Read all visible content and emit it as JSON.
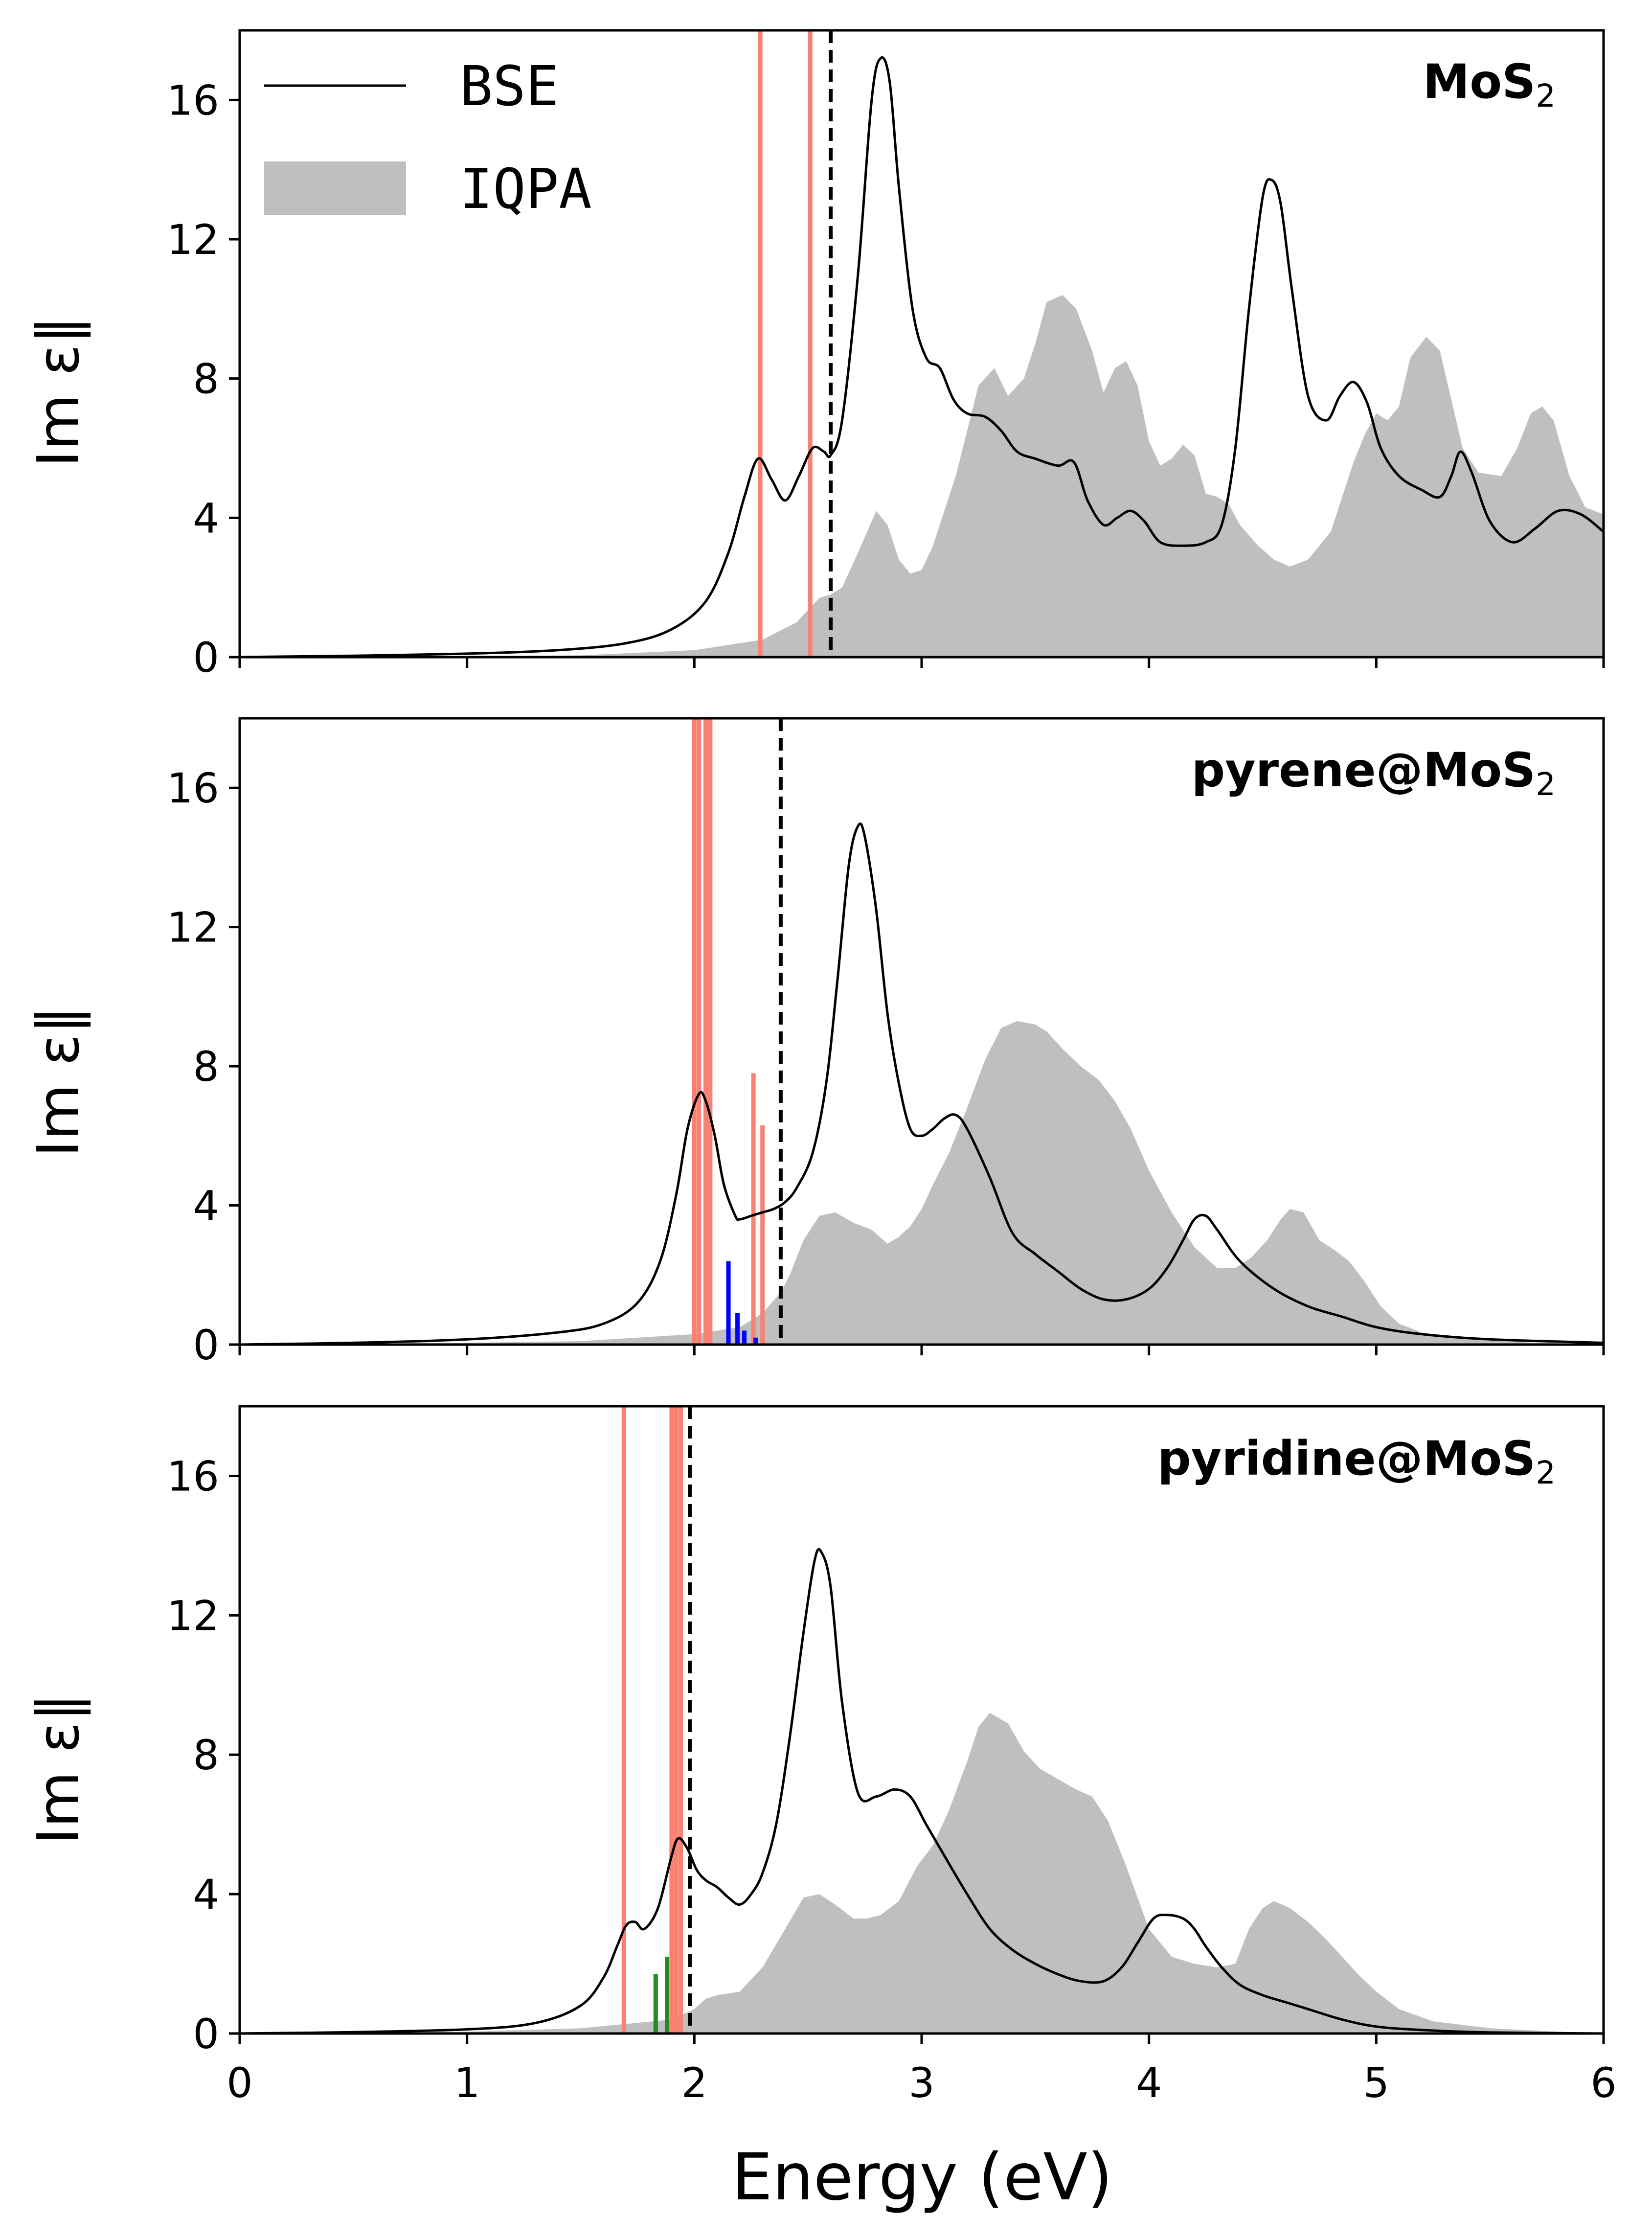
{
  "colors": {
    "bse": "#000000",
    "iqpa": "#bfbfbf",
    "salmon": "#fa8072",
    "blue": "#0000ff",
    "green": "#228b22",
    "dashed": "#000000"
  },
  "legend": {
    "bse_label": "BSE",
    "iqpa_label": "IQPA"
  },
  "chart_data": [
    {
      "type": "line",
      "panel_label": "MoS",
      "panel_label_sub": "2",
      "ylabel": "Im ε∥",
      "xlim": [
        0,
        6
      ],
      "ylim": [
        0,
        18
      ],
      "xticks": [
        0,
        1,
        2,
        3,
        4,
        5,
        6
      ],
      "yticks": [
        0,
        4,
        8,
        12,
        16
      ],
      "gap_line_x": 2.6,
      "bse": {
        "x": [
          0,
          0.5,
          1,
          1.4,
          1.7,
          1.9,
          2.05,
          2.15,
          2.22,
          2.28,
          2.34,
          2.4,
          2.46,
          2.52,
          2.57,
          2.6,
          2.65,
          2.72,
          2.78,
          2.82,
          2.86,
          2.9,
          2.96,
          3.02,
          3.08,
          3.14,
          3.2,
          3.28,
          3.35,
          3.42,
          3.5,
          3.6,
          3.67,
          3.73,
          3.8,
          3.86,
          3.92,
          3.98,
          4.05,
          4.15,
          4.25,
          4.32,
          4.38,
          4.44,
          4.5,
          4.54,
          4.58,
          4.63,
          4.7,
          4.78,
          4.84,
          4.9,
          4.96,
          5.02,
          5.1,
          5.2,
          5.28,
          5.33,
          5.37,
          5.42,
          5.5,
          5.6,
          5.7,
          5.8,
          5.9,
          6.0
        ],
        "y": [
          0.0,
          0.04,
          0.1,
          0.2,
          0.4,
          0.8,
          1.6,
          3.0,
          4.6,
          5.7,
          5.1,
          4.5,
          5.2,
          6.0,
          5.9,
          5.8,
          6.8,
          11.0,
          16.0,
          17.2,
          16.5,
          13.5,
          10.0,
          8.6,
          8.3,
          7.4,
          7.0,
          6.9,
          6.5,
          5.9,
          5.7,
          5.5,
          5.6,
          4.5,
          3.8,
          4.0,
          4.2,
          3.9,
          3.3,
          3.2,
          3.3,
          3.8,
          6.0,
          10.0,
          13.2,
          13.7,
          13.0,
          10.5,
          7.5,
          6.8,
          7.5,
          7.9,
          7.3,
          6.0,
          5.2,
          4.8,
          4.6,
          5.2,
          5.9,
          5.3,
          3.9,
          3.3,
          3.7,
          4.2,
          4.1,
          3.6
        ]
      },
      "iqpa": {
        "x": [
          0,
          1,
          1.5,
          2.0,
          2.3,
          2.45,
          2.55,
          2.6,
          2.65,
          2.72,
          2.8,
          2.85,
          2.9,
          2.95,
          3.0,
          3.05,
          3.15,
          3.25,
          3.32,
          3.38,
          3.45,
          3.5,
          3.55,
          3.62,
          3.68,
          3.75,
          3.8,
          3.85,
          3.9,
          3.95,
          4.0,
          4.05,
          4.1,
          4.15,
          4.2,
          4.25,
          4.3,
          4.35,
          4.4,
          4.48,
          4.55,
          4.62,
          4.7,
          4.8,
          4.85,
          4.9,
          4.95,
          5.0,
          5.05,
          5.1,
          5.15,
          5.22,
          5.28,
          5.33,
          5.38,
          5.45,
          5.55,
          5.62,
          5.68,
          5.73,
          5.78,
          5.85,
          5.92,
          6.0
        ],
        "y": [
          0.0,
          0.02,
          0.05,
          0.2,
          0.5,
          1.0,
          1.7,
          1.8,
          2.0,
          3.0,
          4.2,
          3.8,
          2.8,
          2.4,
          2.5,
          3.2,
          5.2,
          7.8,
          8.3,
          7.5,
          8.0,
          9.0,
          10.2,
          10.4,
          10.0,
          8.8,
          7.6,
          8.3,
          8.5,
          7.8,
          6.2,
          5.5,
          5.7,
          6.1,
          5.8,
          4.7,
          4.6,
          4.4,
          3.8,
          3.2,
          2.8,
          2.6,
          2.8,
          3.6,
          4.6,
          5.6,
          6.4,
          7.0,
          6.8,
          7.2,
          8.6,
          9.2,
          8.8,
          7.4,
          6.0,
          5.3,
          5.2,
          6.0,
          7.0,
          7.2,
          6.8,
          5.2,
          4.3,
          4.1
        ]
      },
      "sticks": [
        {
          "x": 2.29,
          "height": 18,
          "color": "salmon"
        },
        {
          "x": 2.51,
          "height": 18,
          "color": "salmon"
        }
      ]
    },
    {
      "type": "line",
      "panel_label": "pyrene@MoS",
      "panel_label_sub": "2",
      "ylabel": "Im ε∥",
      "xlim": [
        0,
        6
      ],
      "ylim": [
        0,
        18
      ],
      "xticks": [
        0,
        1,
        2,
        3,
        4,
        5,
        6
      ],
      "yticks": [
        0,
        4,
        8,
        12,
        16
      ],
      "gap_line_x": 2.38,
      "bse": {
        "x": [
          0,
          0.5,
          1,
          1.4,
          1.6,
          1.75,
          1.85,
          1.92,
          1.97,
          2.02,
          2.05,
          2.09,
          2.13,
          2.18,
          2.2,
          2.25,
          2.3,
          2.35,
          2.4,
          2.45,
          2.52,
          2.58,
          2.63,
          2.68,
          2.72,
          2.75,
          2.8,
          2.85,
          2.9,
          2.95,
          3.0,
          3.05,
          3.1,
          3.15,
          3.2,
          3.3,
          3.4,
          3.5,
          3.6,
          3.7,
          3.8,
          3.9,
          4.0,
          4.08,
          4.15,
          4.2,
          4.25,
          4.3,
          4.4,
          4.55,
          4.7,
          4.85,
          5.0,
          5.2,
          5.5,
          6.0
        ],
        "y": [
          0.0,
          0.05,
          0.15,
          0.35,
          0.6,
          1.2,
          2.4,
          4.3,
          6.2,
          7.2,
          7.0,
          6.0,
          4.6,
          3.7,
          3.6,
          3.7,
          3.8,
          3.9,
          4.1,
          4.5,
          5.5,
          7.5,
          10.5,
          13.8,
          14.9,
          14.6,
          12.5,
          9.5,
          7.5,
          6.2,
          6.0,
          6.2,
          6.5,
          6.6,
          6.2,
          4.8,
          3.2,
          2.6,
          2.1,
          1.6,
          1.3,
          1.3,
          1.6,
          2.2,
          3.0,
          3.6,
          3.7,
          3.3,
          2.4,
          1.6,
          1.1,
          0.8,
          0.5,
          0.3,
          0.15,
          0.05
        ]
      },
      "iqpa": {
        "x": [
          0,
          1,
          1.5,
          2.0,
          2.2,
          2.3,
          2.38,
          2.42,
          2.48,
          2.55,
          2.62,
          2.7,
          2.78,
          2.85,
          2.9,
          2.95,
          3.0,
          3.05,
          3.12,
          3.2,
          3.28,
          3.35,
          3.42,
          3.5,
          3.55,
          3.62,
          3.7,
          3.78,
          3.85,
          3.92,
          4.0,
          4.1,
          4.2,
          4.3,
          4.38,
          4.45,
          4.52,
          4.58,
          4.62,
          4.68,
          4.75,
          4.82,
          4.88,
          4.95,
          5.02,
          5.1,
          5.2,
          5.4,
          5.7,
          6.0
        ],
        "y": [
          0.0,
          0.05,
          0.1,
          0.3,
          0.5,
          0.9,
          1.5,
          2.0,
          3.0,
          3.7,
          3.8,
          3.5,
          3.3,
          2.9,
          3.1,
          3.4,
          3.9,
          4.6,
          5.5,
          6.8,
          8.2,
          9.1,
          9.3,
          9.2,
          9.0,
          8.5,
          8.0,
          7.6,
          7.0,
          6.2,
          5.0,
          3.8,
          2.8,
          2.2,
          2.2,
          2.5,
          3.0,
          3.6,
          3.9,
          3.8,
          3.0,
          2.7,
          2.4,
          1.8,
          1.1,
          0.6,
          0.35,
          0.15,
          0.05,
          0.0
        ]
      },
      "sticks": [
        {
          "x": 2.0,
          "height": 18,
          "color": "salmon"
        },
        {
          "x": 2.02,
          "height": 18,
          "color": "salmon"
        },
        {
          "x": 2.05,
          "height": 18,
          "color": "salmon"
        },
        {
          "x": 2.07,
          "height": 18,
          "color": "salmon"
        },
        {
          "x": 2.26,
          "height": 7.8,
          "color": "salmon"
        },
        {
          "x": 2.3,
          "height": 6.3,
          "color": "salmon"
        },
        {
          "x": 2.15,
          "height": 2.4,
          "color": "blue"
        },
        {
          "x": 2.19,
          "height": 0.9,
          "color": "blue"
        },
        {
          "x": 2.22,
          "height": 0.4,
          "color": "blue"
        },
        {
          "x": 2.27,
          "height": 0.2,
          "color": "blue"
        }
      ]
    },
    {
      "type": "line",
      "panel_label": "pyridine@MoS",
      "panel_label_sub": "2",
      "ylabel": "Im ε∥",
      "xlabel": "Energy (eV)",
      "xlim": [
        0,
        6
      ],
      "ylim": [
        0,
        18
      ],
      "xticks": [
        0,
        1,
        2,
        3,
        4,
        5,
        6
      ],
      "yticks": [
        0,
        4,
        8,
        12,
        16
      ],
      "gap_line_x": 1.98,
      "bse": {
        "x": [
          0,
          0.5,
          1,
          1.3,
          1.5,
          1.6,
          1.66,
          1.7,
          1.74,
          1.78,
          1.84,
          1.9,
          1.93,
          1.97,
          2.01,
          2.05,
          2.1,
          2.15,
          2.2,
          2.25,
          2.3,
          2.36,
          2.42,
          2.48,
          2.53,
          2.56,
          2.6,
          2.65,
          2.72,
          2.8,
          2.88,
          2.95,
          3.02,
          3.1,
          3.2,
          3.3,
          3.4,
          3.5,
          3.6,
          3.7,
          3.8,
          3.88,
          3.95,
          4.02,
          4.08,
          4.15,
          4.2,
          4.25,
          4.32,
          4.4,
          4.5,
          4.6,
          4.7,
          4.85,
          5.0,
          5.2,
          5.5,
          6.0
        ],
        "y": [
          0.0,
          0.04,
          0.12,
          0.3,
          0.8,
          1.6,
          2.5,
          3.1,
          3.2,
          3.0,
          3.6,
          5.1,
          5.6,
          5.3,
          4.7,
          4.4,
          4.2,
          3.9,
          3.7,
          4.0,
          4.6,
          6.0,
          8.5,
          11.5,
          13.6,
          13.8,
          12.8,
          9.5,
          6.9,
          6.8,
          7.0,
          6.8,
          6.0,
          5.1,
          4.0,
          3.0,
          2.4,
          2.0,
          1.7,
          1.5,
          1.5,
          1.9,
          2.6,
          3.3,
          3.4,
          3.3,
          3.0,
          2.5,
          1.9,
          1.4,
          1.1,
          0.9,
          0.7,
          0.4,
          0.2,
          0.1,
          0.03,
          0.0
        ]
      },
      "iqpa": {
        "x": [
          0,
          1,
          1.5,
          1.9,
          2.0,
          2.05,
          2.1,
          2.2,
          2.3,
          2.4,
          2.48,
          2.55,
          2.62,
          2.7,
          2.76,
          2.82,
          2.9,
          2.98,
          3.05,
          3.12,
          3.2,
          3.25,
          3.3,
          3.38,
          3.45,
          3.52,
          3.6,
          3.68,
          3.75,
          3.82,
          3.9,
          4.0,
          4.1,
          4.2,
          4.3,
          4.38,
          4.44,
          4.5,
          4.55,
          4.62,
          4.7,
          4.78,
          4.85,
          4.92,
          5.0,
          5.1,
          5.25,
          5.5,
          5.8,
          6.0
        ],
        "y": [
          0.0,
          0.05,
          0.15,
          0.4,
          0.7,
          1.0,
          1.1,
          1.2,
          1.9,
          3.0,
          3.9,
          4.0,
          3.7,
          3.3,
          3.3,
          3.4,
          3.8,
          4.8,
          5.4,
          6.4,
          7.8,
          8.8,
          9.2,
          8.9,
          8.1,
          7.6,
          7.3,
          7.0,
          6.8,
          6.1,
          4.8,
          3.0,
          2.2,
          2.0,
          1.9,
          2.0,
          3.0,
          3.6,
          3.8,
          3.6,
          3.2,
          2.7,
          2.2,
          1.7,
          1.2,
          0.7,
          0.35,
          0.15,
          0.05,
          0.0
        ]
      },
      "sticks": [
        {
          "x": 1.69,
          "height": 18,
          "color": "salmon"
        },
        {
          "x": 1.9,
          "height": 18,
          "color": "salmon"
        },
        {
          "x": 1.92,
          "height": 18,
          "color": "salmon"
        },
        {
          "x": 1.94,
          "height": 18,
          "color": "salmon"
        },
        {
          "x": 1.83,
          "height": 1.7,
          "color": "green"
        },
        {
          "x": 1.88,
          "height": 2.2,
          "color": "green"
        }
      ]
    }
  ]
}
